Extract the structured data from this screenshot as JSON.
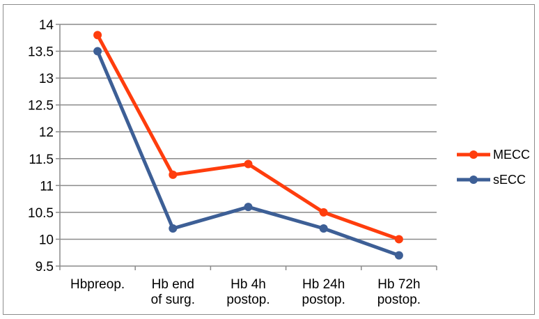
{
  "chart_data": {
    "type": "line",
    "title": "",
    "xlabel": "",
    "ylabel": "",
    "categories": [
      [
        "Hbpreop."
      ],
      [
        "Hb end",
        "of surg."
      ],
      [
        "Hb 4h",
        "postop."
      ],
      [
        "Hb 24h",
        "postop."
      ],
      [
        "Hb 72h",
        "postop."
      ]
    ],
    "ylim": [
      9.5,
      14
    ],
    "yticks": [
      "9.5",
      "10",
      "10.5",
      "11",
      "11.5",
      "12",
      "12.5",
      "13",
      "13.5",
      "14"
    ],
    "grid": true,
    "legend_position": "right",
    "series": [
      {
        "name": "MECC",
        "color": "#ff3d0d",
        "values": [
          13.8,
          11.2,
          11.4,
          10.5,
          10.0
        ]
      },
      {
        "name": "sECC",
        "color": "#3d5f96",
        "values": [
          13.5,
          10.2,
          10.6,
          10.2,
          9.7
        ]
      }
    ]
  }
}
